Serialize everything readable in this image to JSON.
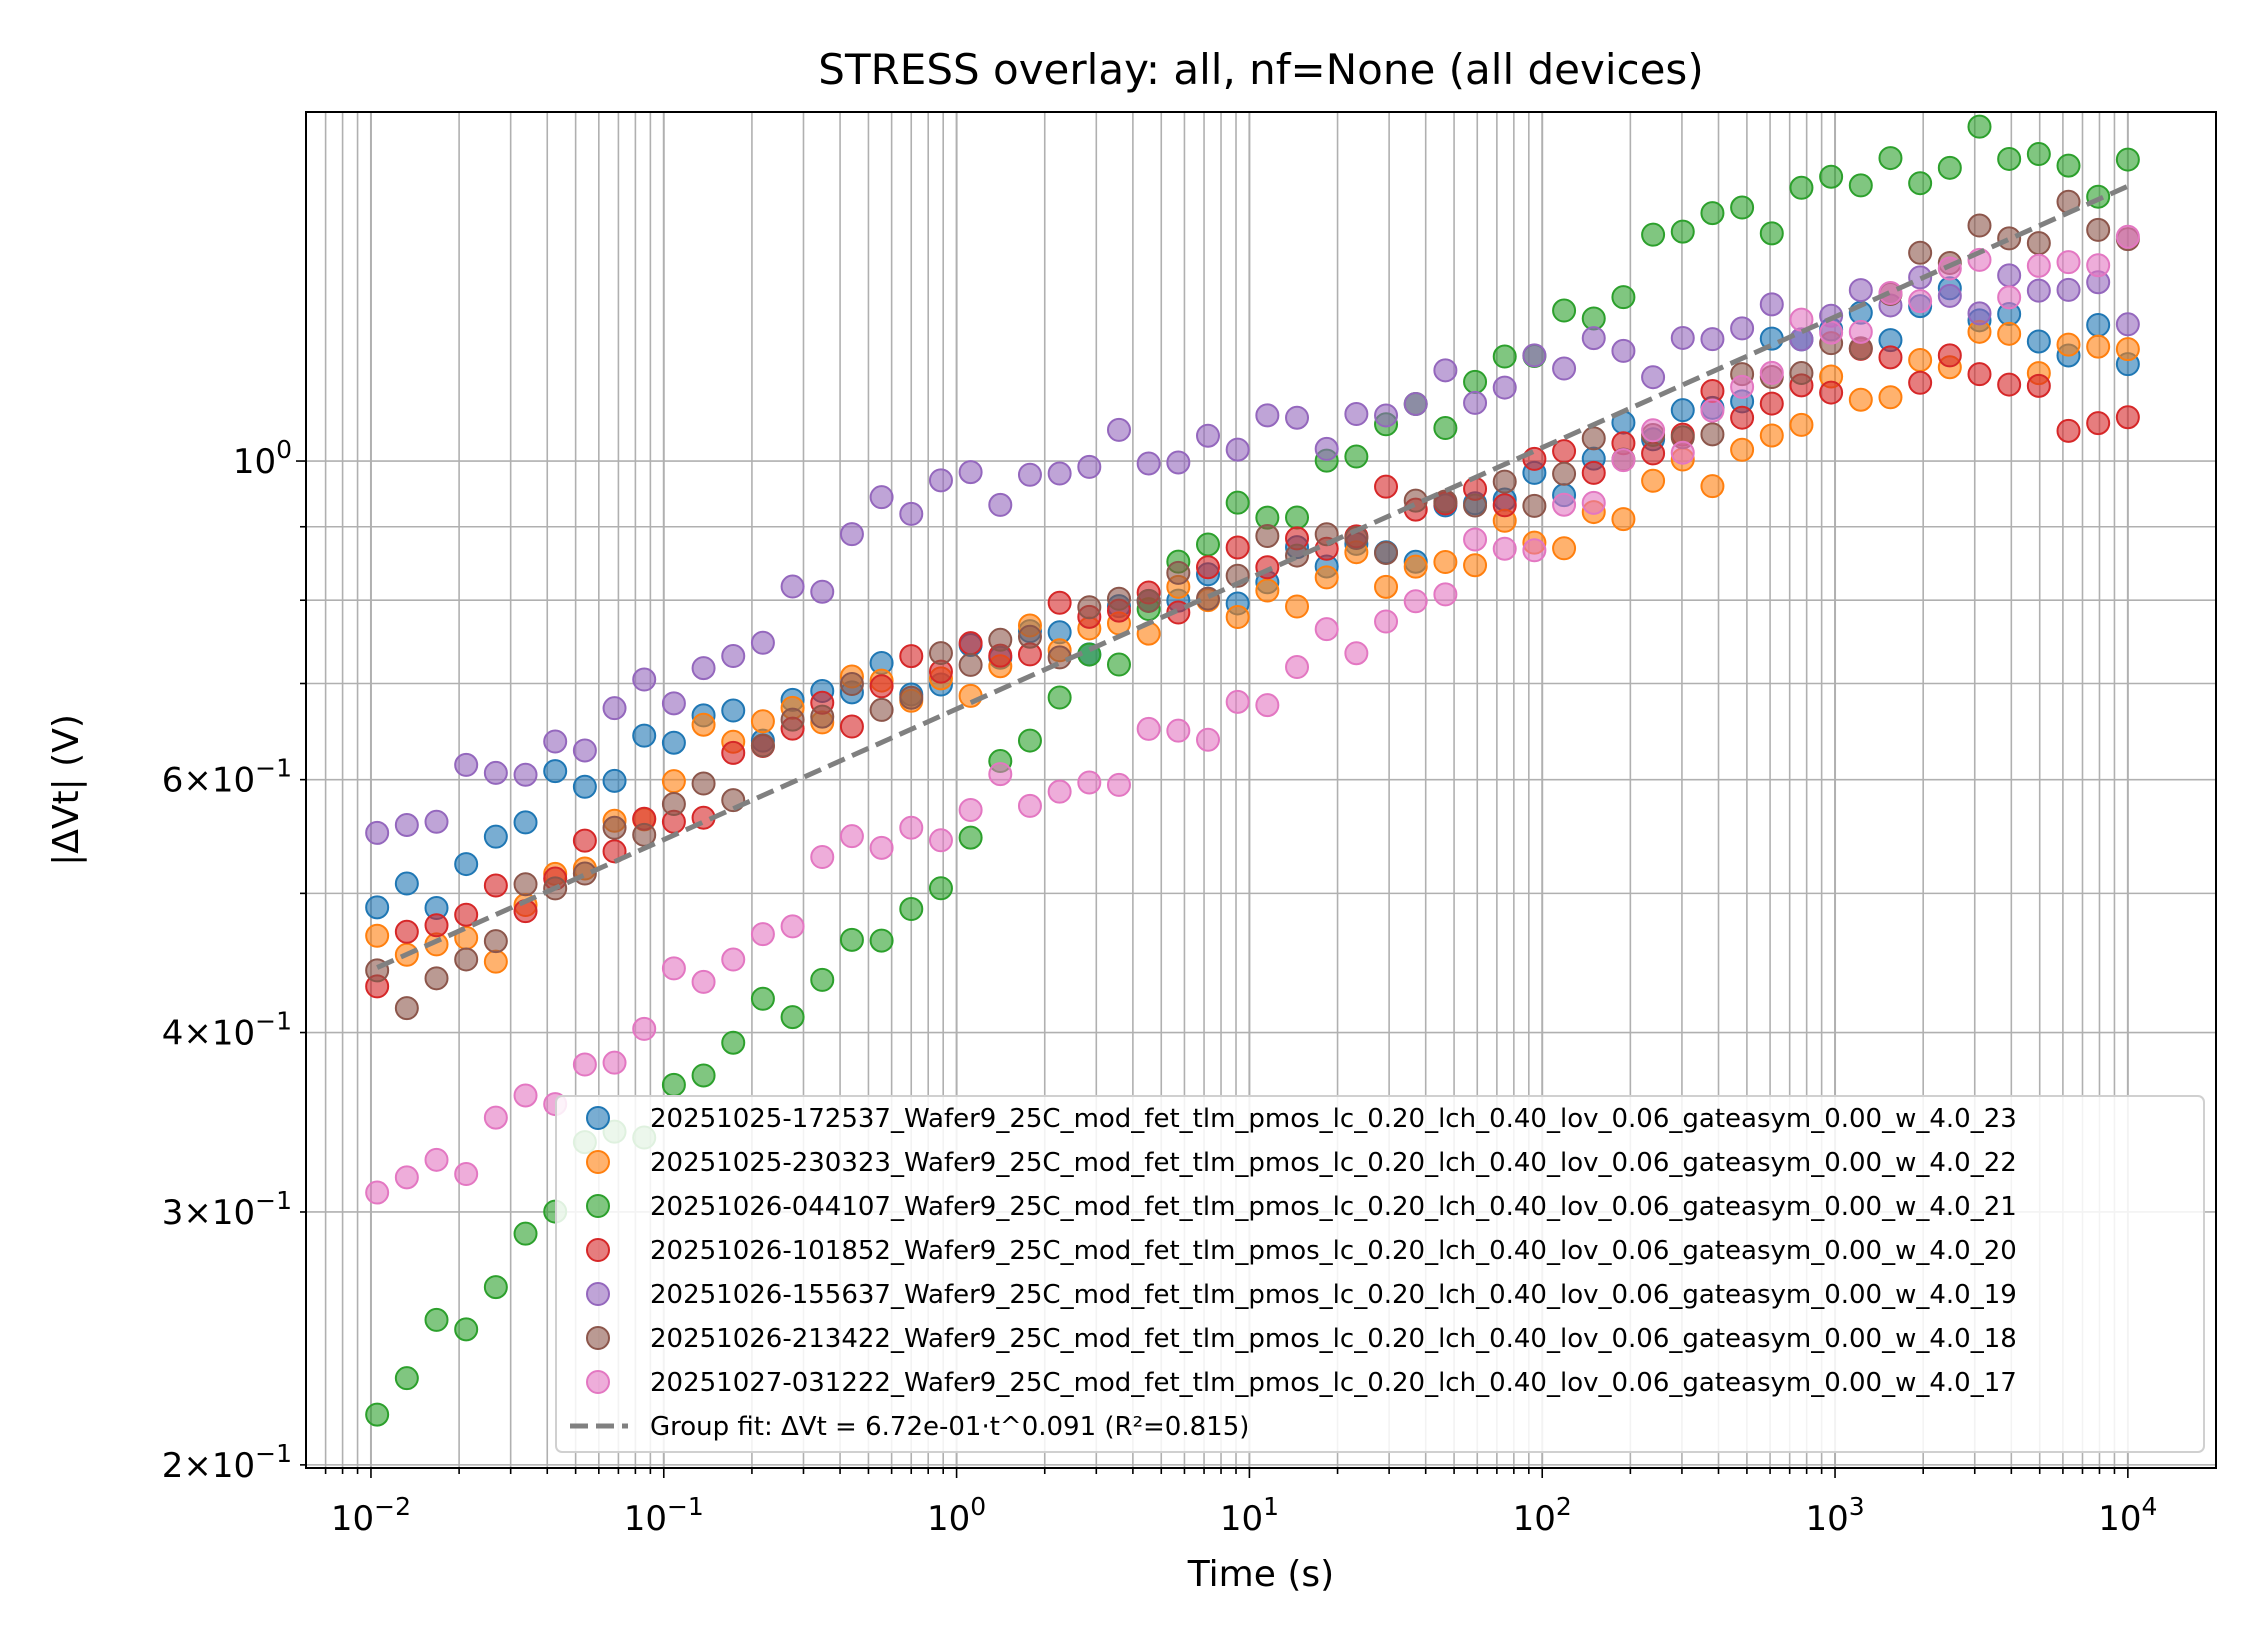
{
  "chart_data": {
    "type": "scatter",
    "title": "STRESS overlay: all, nf=None  (all devices)",
    "xlabel": "Time (s)",
    "ylabel": "|ΔVt| (V)",
    "xscale": "log",
    "yscale": "log",
    "xlim": [
      0.006,
      20000
    ],
    "ylim": [
      0.199,
      1.75
    ],
    "grid": true,
    "legend_position": "lower-right",
    "x_major_ticks": [
      {
        "value": 0.01,
        "base": "10",
        "exp": "−2"
      },
      {
        "value": 0.1,
        "base": "10",
        "exp": "−1"
      },
      {
        "value": 1,
        "base": "10",
        "exp": "0"
      },
      {
        "value": 10,
        "base": "10",
        "exp": "1"
      },
      {
        "value": 100,
        "base": "10",
        "exp": "2"
      },
      {
        "value": 1000,
        "base": "10",
        "exp": "3"
      },
      {
        "value": 10000,
        "base": "10",
        "exp": "4"
      }
    ],
    "y_ticks": [
      {
        "value": 0.2,
        "mant": "2×10",
        "exp": "−1"
      },
      {
        "value": 0.3,
        "mant": "3×10",
        "exp": "−1"
      },
      {
        "value": 0.4,
        "mant": "4×10",
        "exp": "−1"
      },
      {
        "value": 0.6,
        "mant": "6×10",
        "exp": "−1"
      },
      {
        "value": 1.0,
        "mant": "10",
        "exp": "0"
      }
    ],
    "t_range": [
      0.0105,
      10000
    ],
    "n_points": 60,
    "series": [
      {
        "name": "20251025-172537_Wafer9_25C_mod_fet_tlm_pmos_lc_0.20_lch_0.40_lov_0.06_gateasym_0.00_w_4.0_23",
        "color": "#1f77b4",
        "anchors": [
          [
            0.0105,
            0.48
          ],
          [
            0.02,
            0.52
          ],
          [
            0.05,
            0.6
          ],
          [
            0.1,
            0.64
          ],
          [
            0.3,
            0.68
          ],
          [
            1,
            0.72
          ],
          [
            3,
            0.77
          ],
          [
            10,
            0.83
          ],
          [
            30,
            0.87
          ],
          [
            100,
            0.97
          ],
          [
            300,
            1.07
          ],
          [
            1000,
            1.25
          ],
          [
            3000,
            1.28
          ],
          [
            10000,
            1.17
          ]
        ]
      },
      {
        "name": "20251025-230323_Wafer9_25C_mod_fet_tlm_pmos_lc_0.20_lch_0.40_lov_0.06_gateasym_0.00_w_4.0_22",
        "color": "#ff7f0e",
        "anchors": [
          [
            0.0105,
            0.45
          ],
          [
            0.03,
            0.47
          ],
          [
            0.05,
            0.52
          ],
          [
            0.12,
            0.62
          ],
          [
            0.3,
            0.68
          ],
          [
            1,
            0.7
          ],
          [
            3,
            0.77
          ],
          [
            10,
            0.8
          ],
          [
            30,
            0.84
          ],
          [
            100,
            0.88
          ],
          [
            300,
            0.97
          ],
          [
            1000,
            1.1
          ],
          [
            3000,
            1.2
          ],
          [
            10000,
            1.2
          ]
        ]
      },
      {
        "name": "20251026-044107_Wafer9_25C_mod_fet_tlm_pmos_lc_0.20_lch_0.40_lov_0.06_gateasym_0.00_w_4.0_21",
        "color": "#2ca02c",
        "anchors": [
          [
            0.0105,
            0.22
          ],
          [
            0.02,
            0.25
          ],
          [
            0.05,
            0.32
          ],
          [
            0.1,
            0.36
          ],
          [
            0.2,
            0.4
          ],
          [
            0.5,
            0.47
          ],
          [
            0.8,
            0.47
          ],
          [
            1,
            0.55
          ],
          [
            1.5,
            0.62
          ],
          [
            3,
            0.72
          ],
          [
            7,
            0.88
          ],
          [
            15,
            0.95
          ],
          [
            30,
            1.05
          ],
          [
            100,
            1.2
          ],
          [
            300,
            1.45
          ],
          [
            1000,
            1.55
          ],
          [
            3000,
            1.65
          ],
          [
            10000,
            1.58
          ]
        ]
      },
      {
        "name": "20251026-101852_Wafer9_25C_mod_fet_tlm_pmos_lc_0.20_lch_0.40_lov_0.06_gateasym_0.00_w_4.0_20",
        "color": "#d62728",
        "anchors": [
          [
            0.0105,
            0.45
          ],
          [
            0.03,
            0.5
          ],
          [
            0.1,
            0.56
          ],
          [
            0.3,
            0.66
          ],
          [
            1,
            0.73
          ],
          [
            3,
            0.78
          ],
          [
            10,
            0.85
          ],
          [
            30,
            0.92
          ],
          [
            100,
            0.98
          ],
          [
            300,
            1.05
          ],
          [
            1000,
            1.15
          ],
          [
            3000,
            1.18
          ],
          [
            5000,
            1.08
          ],
          [
            10000,
            1.07
          ]
        ]
      },
      {
        "name": "20251026-155637_Wafer9_25C_mod_fet_tlm_pmos_lc_0.20_lch_0.40_lov_0.06_gateasym_0.00_w_4.0_19",
        "color": "#9467bd",
        "anchors": [
          [
            0.0105,
            0.55
          ],
          [
            0.03,
            0.61
          ],
          [
            0.1,
            0.69
          ],
          [
            0.3,
            0.79
          ],
          [
            0.4,
            0.84
          ],
          [
            0.45,
            0.93
          ],
          [
            1,
            0.95
          ],
          [
            3,
            1.0
          ],
          [
            10,
            1.04
          ],
          [
            30,
            1.08
          ],
          [
            100,
            1.17
          ],
          [
            300,
            1.2
          ],
          [
            1000,
            1.28
          ],
          [
            3000,
            1.32
          ],
          [
            10000,
            1.3
          ]
        ]
      },
      {
        "name": "20251026-213422_Wafer9_25C_mod_fet_tlm_pmos_lc_0.20_lch_0.40_lov_0.06_gateasym_0.00_w_4.0_18",
        "color": "#8c564b",
        "anchors": [
          [
            0.0105,
            0.43
          ],
          [
            0.02,
            0.44
          ],
          [
            0.05,
            0.53
          ],
          [
            0.1,
            0.56
          ],
          [
            0.3,
            0.66
          ],
          [
            1,
            0.72
          ],
          [
            3,
            0.78
          ],
          [
            10,
            0.85
          ],
          [
            30,
            0.9
          ],
          [
            100,
            0.97
          ],
          [
            300,
            1.05
          ],
          [
            1000,
            1.2
          ],
          [
            3000,
            1.45
          ],
          [
            10000,
            1.45
          ]
        ]
      },
      {
        "name": "20251027-031222_Wafer9_25C_mod_fet_tlm_pmos_lc_0.20_lch_0.40_lov_0.06_gateasym_0.00_w_4.0_17",
        "color": "#e377c2",
        "anchors": [
          [
            0.0105,
            0.31
          ],
          [
            0.02,
            0.33
          ],
          [
            0.05,
            0.37
          ],
          [
            0.1,
            0.42
          ],
          [
            0.2,
            0.46
          ],
          [
            0.3,
            0.5
          ],
          [
            0.5,
            0.55
          ],
          [
            0.8,
            0.55
          ],
          [
            1,
            0.57
          ],
          [
            3,
            0.6
          ],
          [
            10,
            0.68
          ],
          [
            30,
            0.78
          ],
          [
            100,
            0.9
          ],
          [
            300,
            1.05
          ],
          [
            1000,
            1.25
          ],
          [
            3000,
            1.35
          ],
          [
            10000,
            1.38
          ]
        ]
      }
    ],
    "fit": {
      "name": "Group fit: ΔVt = 6.72e-01·t^0.091  (R²=0.815)",
      "color": "#808080",
      "a": 0.672,
      "b": 0.091
    }
  }
}
